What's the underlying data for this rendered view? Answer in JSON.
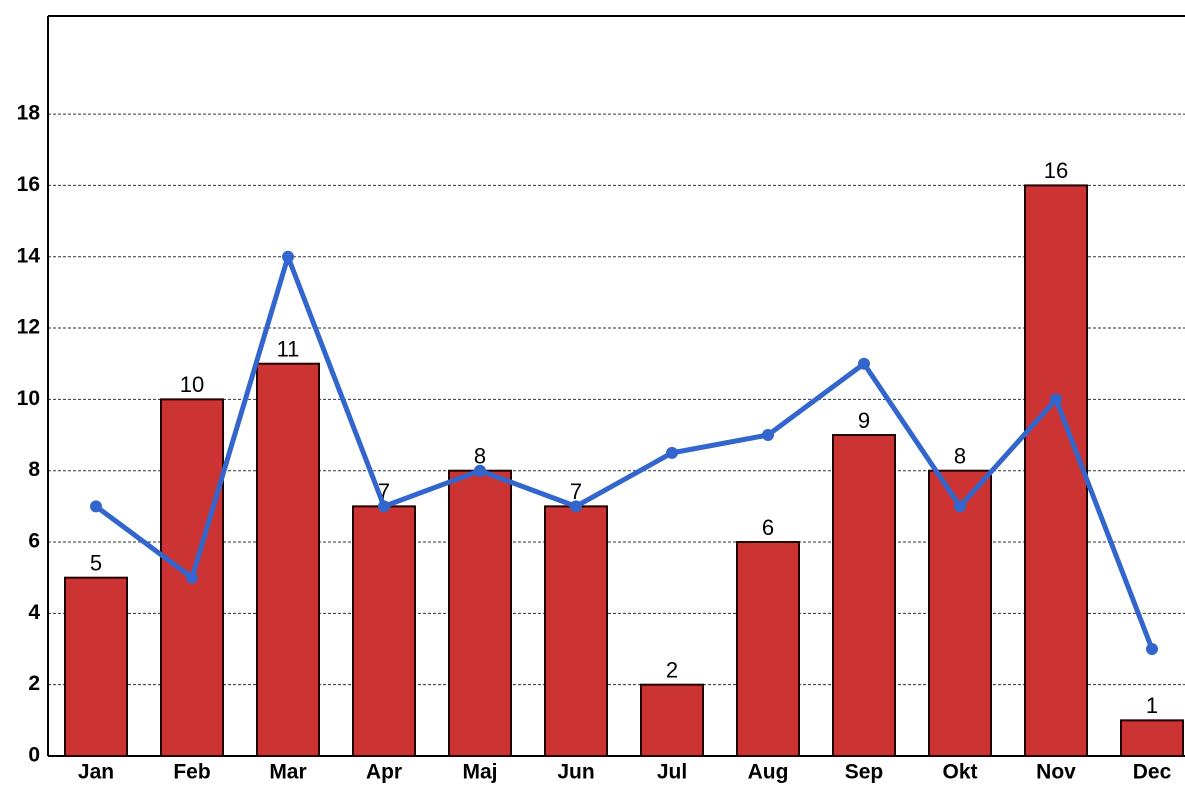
{
  "chart_data": {
    "type": "combo",
    "categories": [
      "Jan",
      "Feb",
      "Mar",
      "Apr",
      "Maj",
      "Jun",
      "Jul",
      "Aug",
      "Sep",
      "Okt",
      "Nov",
      "Dec"
    ],
    "series": [
      {
        "type": "bar",
        "color": "#cc3333",
        "values": [
          5,
          10,
          11,
          7,
          8,
          7,
          2,
          6,
          9,
          8,
          16,
          1
        ]
      },
      {
        "type": "line",
        "color": "#3366cc",
        "values": [
          7,
          5,
          14,
          7,
          8,
          7,
          8.5,
          9,
          11,
          7,
          10,
          3
        ]
      }
    ],
    "ylim": [
      0,
      20.75
    ],
    "yticks": [
      0,
      2,
      4,
      6,
      8,
      10,
      12,
      14,
      16,
      18
    ],
    "grid": true
  }
}
